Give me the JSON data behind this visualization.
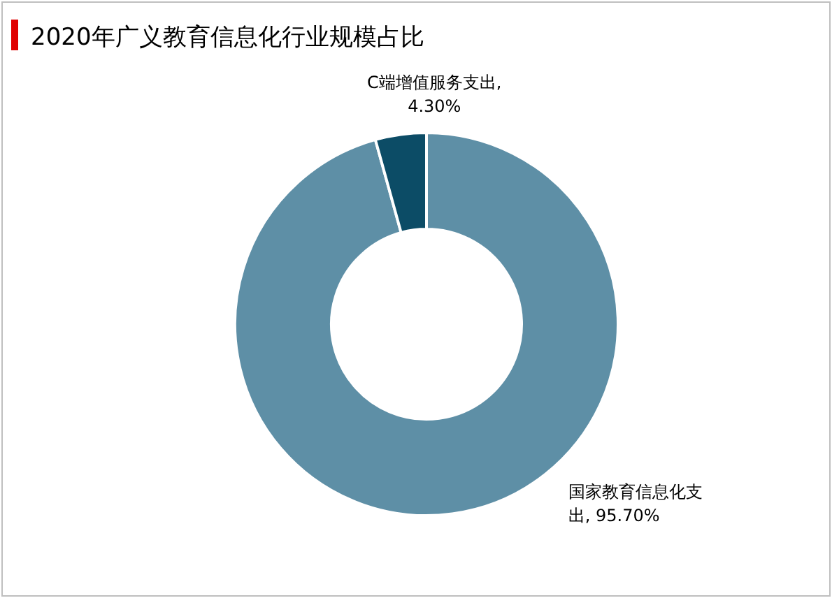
{
  "chart_data": {
    "type": "donut",
    "title": "2020年广义教育信息化行业规模占比",
    "categories": [
      "国家教育信息化支出",
      "C端增值服务支出"
    ],
    "values": [
      95.7,
      4.3
    ],
    "value_labels": [
      ", 95.70%",
      ", 4.30%"
    ],
    "colors": [
      "#5e8fa6",
      "#0c4c66"
    ],
    "legend": false
  }
}
